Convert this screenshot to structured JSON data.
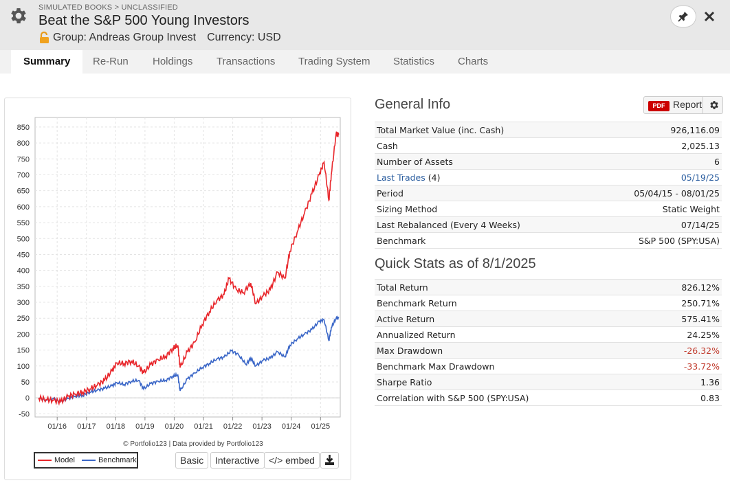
{
  "header": {
    "breadcrumb": "SIMULATED BOOKS > UNCLASSIFIED",
    "title": "Beat the S&P 500 Young Investors",
    "group": "Group: Andreas Group Invest",
    "currency": "Currency: USD"
  },
  "tabs": [
    "Summary",
    "Re-Run",
    "Holdings",
    "Transactions",
    "Trading System",
    "Statistics",
    "Charts"
  ],
  "chart": {
    "credit": "© Portfolio123 | Data provided by Portfolio123",
    "legend_model": "Model",
    "legend_benchmark": "Benchmark",
    "buttons": {
      "basic": "Basic",
      "interactive": "Interactive",
      "embed": "</> embed"
    }
  },
  "chart_data": {
    "type": "line",
    "xlabel": "",
    "ylabel": "",
    "x_ticks": [
      "01/16",
      "01/17",
      "01/18",
      "01/19",
      "01/20",
      "01/21",
      "01/22",
      "01/23",
      "01/24",
      "01/25"
    ],
    "y_ticks": [
      -50,
      0,
      50,
      100,
      150,
      200,
      250,
      300,
      350,
      400,
      450,
      500,
      550,
      600,
      650,
      700,
      750,
      800,
      850
    ],
    "ylim": [
      -60,
      880
    ],
    "x_start": "2015-05-04",
    "x_end": "2025-08-01",
    "grid": true,
    "legend_position": "bottom-left",
    "series": [
      {
        "name": "Model",
        "color": "#e8262b",
        "points": [
          [
            "2015-05",
            0
          ],
          [
            "2015-08",
            -5
          ],
          [
            "2015-11",
            -8
          ],
          [
            "2016-02",
            -12
          ],
          [
            "2016-05",
            5
          ],
          [
            "2016-08",
            12
          ],
          [
            "2016-11",
            18
          ],
          [
            "2017-02",
            28
          ],
          [
            "2017-05",
            40
          ],
          [
            "2017-08",
            55
          ],
          [
            "2017-11",
            85
          ],
          [
            "2018-01",
            110
          ],
          [
            "2018-04",
            108
          ],
          [
            "2018-07",
            115
          ],
          [
            "2018-10",
            100
          ],
          [
            "2018-12",
            78
          ],
          [
            "2019-03",
            105
          ],
          [
            "2019-06",
            120
          ],
          [
            "2019-09",
            130
          ],
          [
            "2019-12",
            155
          ],
          [
            "2020-02",
            165
          ],
          [
            "2020-03",
            95
          ],
          [
            "2020-06",
            145
          ],
          [
            "2020-09",
            175
          ],
          [
            "2020-12",
            230
          ],
          [
            "2021-03",
            270
          ],
          [
            "2021-06",
            305
          ],
          [
            "2021-09",
            325
          ],
          [
            "2021-11",
            375
          ],
          [
            "2022-02",
            340
          ],
          [
            "2022-05",
            330
          ],
          [
            "2022-08",
            360
          ],
          [
            "2022-10",
            295
          ],
          [
            "2023-01",
            320
          ],
          [
            "2023-04",
            340
          ],
          [
            "2023-07",
            395
          ],
          [
            "2023-10",
            375
          ],
          [
            "2023-12",
            460
          ],
          [
            "2024-03",
            520
          ],
          [
            "2024-06",
            580
          ],
          [
            "2024-09",
            640
          ],
          [
            "2024-12",
            700
          ],
          [
            "2025-02",
            740
          ],
          [
            "2025-04",
            620
          ],
          [
            "2025-05",
            700
          ],
          [
            "2025-07",
            830
          ],
          [
            "2025-08",
            826
          ]
        ]
      },
      {
        "name": "Benchmark",
        "color": "#3a66c7",
        "points": [
          [
            "2015-05",
            0
          ],
          [
            "2015-08",
            -8
          ],
          [
            "2015-11",
            -2
          ],
          [
            "2016-02",
            -12
          ],
          [
            "2016-05",
            -2
          ],
          [
            "2016-08",
            5
          ],
          [
            "2016-11",
            8
          ],
          [
            "2017-02",
            18
          ],
          [
            "2017-05",
            24
          ],
          [
            "2017-08",
            30
          ],
          [
            "2017-11",
            38
          ],
          [
            "2018-01",
            48
          ],
          [
            "2018-04",
            42
          ],
          [
            "2018-07",
            52
          ],
          [
            "2018-10",
            55
          ],
          [
            "2018-12",
            28
          ],
          [
            "2019-03",
            45
          ],
          [
            "2019-06",
            52
          ],
          [
            "2019-09",
            55
          ],
          [
            "2019-12",
            68
          ],
          [
            "2020-02",
            72
          ],
          [
            "2020-03",
            22
          ],
          [
            "2020-06",
            60
          ],
          [
            "2020-09",
            78
          ],
          [
            "2020-12",
            95
          ],
          [
            "2021-03",
            108
          ],
          [
            "2021-06",
            122
          ],
          [
            "2021-09",
            128
          ],
          [
            "2021-12",
            148
          ],
          [
            "2022-03",
            135
          ],
          [
            "2022-06",
            105
          ],
          [
            "2022-08",
            125
          ],
          [
            "2022-10",
            100
          ],
          [
            "2023-01",
            118
          ],
          [
            "2023-04",
            125
          ],
          [
            "2023-07",
            145
          ],
          [
            "2023-10",
            128
          ],
          [
            "2023-12",
            165
          ],
          [
            "2024-03",
            185
          ],
          [
            "2024-06",
            200
          ],
          [
            "2024-09",
            215
          ],
          [
            "2024-12",
            240
          ],
          [
            "2025-02",
            245
          ],
          [
            "2025-04",
            180
          ],
          [
            "2025-05",
            220
          ],
          [
            "2025-07",
            250
          ],
          [
            "2025-08",
            251
          ]
        ]
      }
    ]
  },
  "general_info": {
    "title": "General Info",
    "report": {
      "badge": "PDF",
      "label": "Report"
    },
    "rows": [
      {
        "label": "Total Market Value (inc. Cash)",
        "value": "926,116.09"
      },
      {
        "label": "Cash",
        "value": "2,025.13"
      },
      {
        "label": "Number of Assets",
        "value": "6"
      },
      {
        "label": "Last Trades",
        "count": "(4)",
        "value": "05/19/25"
      },
      {
        "label": "Period",
        "value": "05/04/15 - 08/01/25"
      },
      {
        "label": "Sizing Method",
        "value": "Static Weight"
      },
      {
        "label": "Last Rebalanced (Every 4 Weeks)",
        "value": "07/14/25"
      },
      {
        "label": "Benchmark",
        "value": "S&P 500 (SPY:USA)"
      }
    ]
  },
  "quick_stats": {
    "title": "Quick Stats as of 8/1/2025",
    "rows": [
      {
        "label": "Total Return",
        "value": "826.12%"
      },
      {
        "label": "Benchmark Return",
        "value": "250.71%"
      },
      {
        "label": "Active Return",
        "value": "575.41%"
      },
      {
        "label": "Annualized Return",
        "value": "24.25%"
      },
      {
        "label": "Max Drawdown",
        "value": "-26.32%"
      },
      {
        "label": "Benchmark Max Drawdown",
        "value": "-33.72%"
      },
      {
        "label": "Sharpe Ratio",
        "value": "1.36"
      },
      {
        "label": "Correlation with S&P 500 (SPY:USA)",
        "value": "0.83"
      }
    ]
  },
  "colors": {
    "negative": "#c0392b",
    "link": "#2a5d9f",
    "pdf_badge": "#cc0000"
  }
}
